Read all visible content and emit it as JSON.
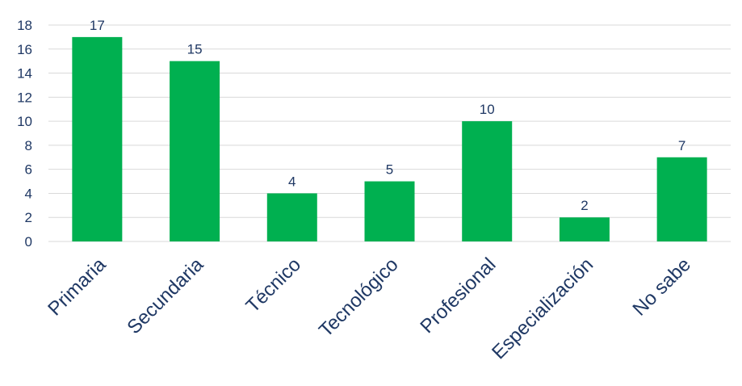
{
  "chart_data": {
    "type": "bar",
    "categories": [
      "Primaria",
      "Secundaria",
      "Técnico",
      "Tecnológico",
      "Profesional",
      "Especialización",
      "No sabe"
    ],
    "values": [
      17,
      15,
      4,
      5,
      10,
      2,
      7
    ],
    "data_labels": [
      "17",
      "15",
      "4",
      "5",
      "10",
      "2",
      "7"
    ],
    "yticks": [
      0,
      2,
      4,
      6,
      8,
      10,
      12,
      14,
      16,
      18
    ],
    "ytick_labels": [
      "0",
      "2",
      "4",
      "6",
      "8",
      "10",
      "12",
      "14",
      "16",
      "18"
    ],
    "ylim": [
      0,
      18
    ],
    "grid": true,
    "legend": "none",
    "colors": {
      "bar": "#00b050",
      "grid": "#d9d9d9",
      "text": "#1f3864"
    }
  }
}
